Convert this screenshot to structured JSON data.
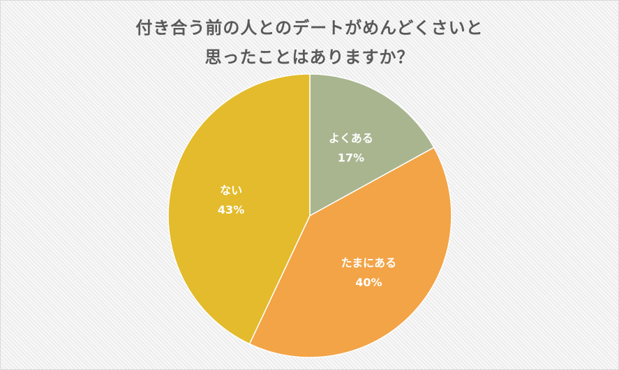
{
  "chart_data": {
    "type": "pie",
    "title_lines": [
      "付き合う前の人とのデートがめんどくさいと",
      "思ったことはありますか？"
    ],
    "slices": [
      {
        "label": "よくある",
        "value": 17,
        "value_label": "17%",
        "color": "#a9b58f"
      },
      {
        "label": "たまにある",
        "value": 40,
        "value_label": "40%",
        "color": "#f2a447"
      },
      {
        "label": "ない",
        "value": 43,
        "value_label": "43%",
        "color": "#e3bb2c"
      }
    ],
    "start_angle": "12 o'clock",
    "direction": "clockwise",
    "legend": "none",
    "data_labels": "inside"
  }
}
